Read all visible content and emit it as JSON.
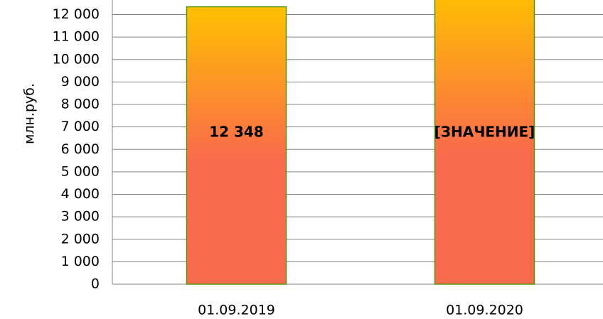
{
  "chart_data": {
    "type": "bar",
    "y_label": "млн.руб.",
    "categories": [
      "01.09.2019",
      "01.09.2020"
    ],
    "values": [
      12348,
      13000
    ],
    "value_labels": [
      "12 348",
      "[ЗНАЧЕНИЕ]"
    ],
    "ylim": [
      0,
      12650
    ],
    "yticks": [
      0,
      {
        "value": 1000,
        "label": "1 000"
      },
      {
        "value": 2000,
        "label": "2 000"
      },
      {
        "value": 3000,
        "label": "3 000"
      },
      {
        "value": 4000,
        "label": "4 000"
      },
      {
        "value": 5000,
        "label": "5 000"
      },
      {
        "value": 6000,
        "label": "6 000"
      },
      {
        "value": 7000,
        "label": "7 000"
      },
      {
        "value": 8000,
        "label": "8 000"
      },
      {
        "value": 9000,
        "label": "9 000"
      },
      {
        "value": 10000,
        "label": "10 000"
      },
      {
        "value": 11000,
        "label": "11 000"
      },
      {
        "value": 12000,
        "label": "12 000"
      }
    ],
    "grid": true,
    "color": [
      "#FFC000",
      "#FA6A4C"
    ],
    "edge_color": "#4E9A06"
  }
}
